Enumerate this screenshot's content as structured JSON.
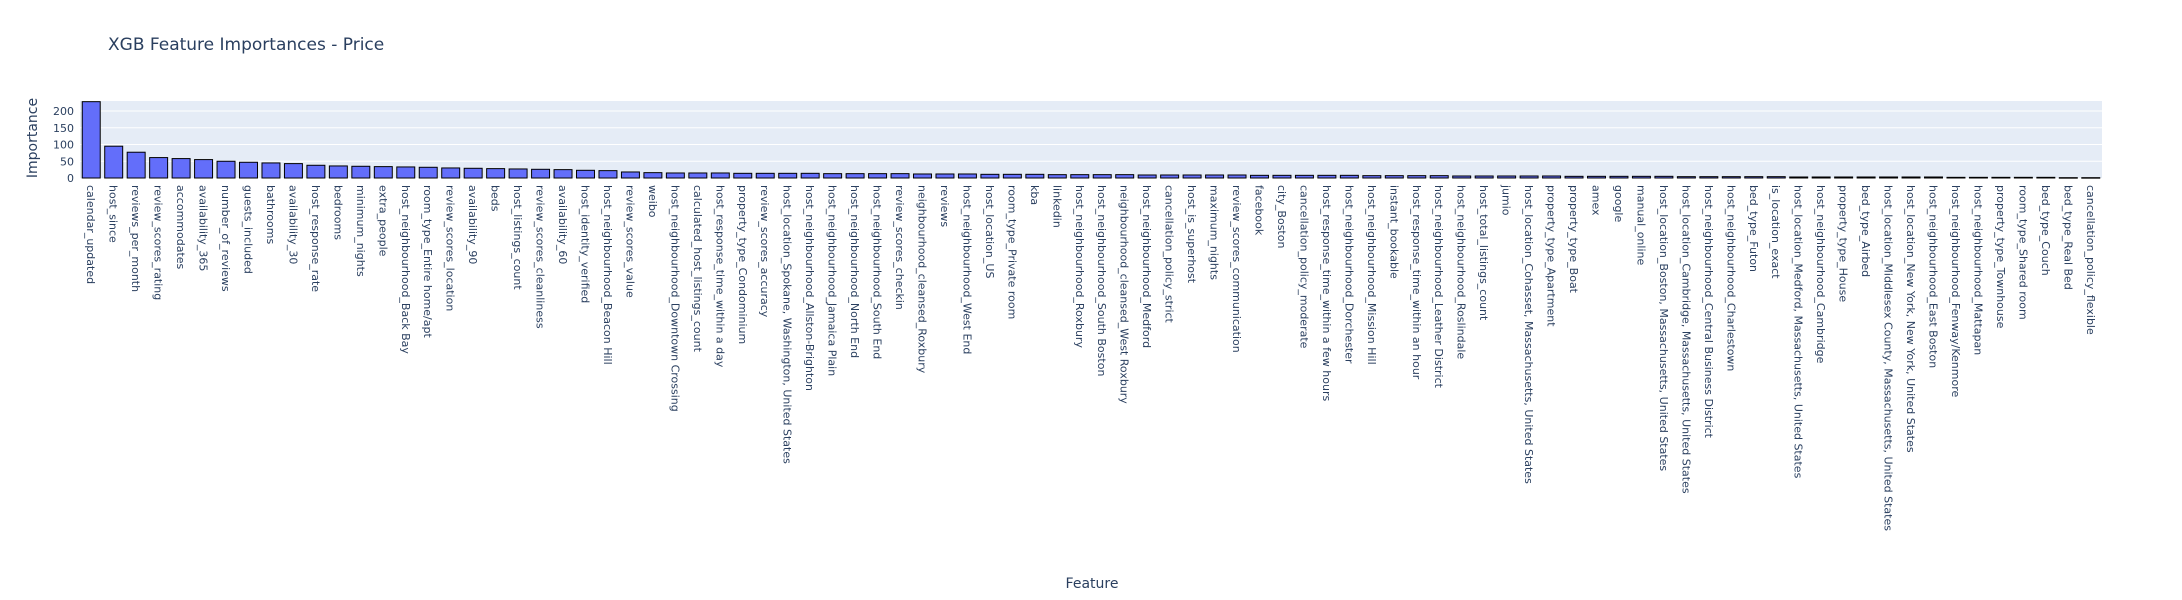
{
  "chart_data": {
    "type": "bar",
    "title": "XGB Feature Importances - Price",
    "xlabel": "Feature",
    "ylabel": "Importance",
    "ylim": [
      0,
      230
    ],
    "yticks": [
      0,
      50,
      100,
      150,
      200
    ],
    "grid": true,
    "colors": {
      "bar": "#636efa",
      "bar_outline": "#000000",
      "plot_bg": "#e5ecf6",
      "grid": "#ffffff",
      "text": "#2a3f5f"
    },
    "categories": [
      "calendar_updated",
      "host_since",
      "reviews_per_month",
      "review_scores_rating",
      "accommodates",
      "availability_365",
      "number_of_reviews",
      "guests_included",
      "bathrooms",
      "availability_30",
      "host_response_rate",
      "bedrooms",
      "minimum_nights",
      "extra_people",
      "host_neighbourhood_Back Bay",
      "room_type_Entire home/apt",
      "review_scores_location",
      "availability_90",
      "beds",
      "host_listings_count",
      "review_scores_cleanliness",
      "availability_60",
      "host_identity_verified",
      "host_neighbourhood_Beacon Hill",
      "review_scores_value",
      "weibo",
      "host_neighbourhood_Downtown Crossing",
      "calculated_host_listings_count",
      "host_response_time_within a day",
      "property_type_Condominium",
      "review_scores_accuracy",
      "host_location_Spokane, Washington, United States",
      "host_neighbourhood_Allston-Brighton",
      "host_neighbourhood_Jamaica Plain",
      "host_neighbourhood_North End",
      "host_neighbourhood_South End",
      "review_scores_checkin",
      "neighbourhood_cleansed_Roxbury",
      "reviews",
      "host_neighbourhood_West End",
      "host_location_US",
      "room_type_Private room",
      "kba",
      "linkedin",
      "host_neighbourhood_Roxbury",
      "host_neighbourhood_South Boston",
      "neighbourhood_cleansed_West Roxbury",
      "host_neighbourhood_Medford",
      "cancellation_policy_strict",
      "host_is_superhost",
      "maximum_nights",
      "review_scores_communication",
      "facebook",
      "city_Boston",
      "cancellation_policy_moderate",
      "host_response_time_within a few hours",
      "host_neighbourhood_Dorchester",
      "host_neighbourhood_Mission Hill",
      "instant_bookable",
      "host_response_time_within an hour",
      "host_neighbourhood_Leather District",
      "host_neighbourhood_Roslindale",
      "host_total_listings_count",
      "jumio",
      "host_location_Cohasset, Massachusetts, United States",
      "property_type_Apartment",
      "property_type_Boat",
      "amex",
      "google",
      "manual_online",
      "host_location_Boston, Massachusetts, United States",
      "host_location_Cambridge, Massachusetts, United States",
      "host_neighbourhood_Central Business District",
      "host_neighbourhood_Charlestown",
      "bed_type_Futon",
      "is_location_exact",
      "host_location_Medford, Massachusetts, United States",
      "host_neighbourhood_Cambridge",
      "property_type_House",
      "bed_type_Airbed",
      "host_location_Middlesex County, Massachusetts, United States",
      "host_location_New York, New York, United States",
      "host_neighbourhood_East Boston",
      "host_neighbourhood_Fenway/Kenmore",
      "host_neighbourhood_Mattapan",
      "property_type_Townhouse",
      "room_type_Shared room",
      "bed_type_Couch",
      "bed_type_Real Bed",
      "cancellation_policy_flexible"
    ],
    "values": [
      228,
      95,
      77,
      61,
      58,
      55,
      50,
      47,
      45,
      43,
      38,
      36,
      35,
      34,
      33,
      32,
      30,
      29,
      28,
      27,
      26,
      25,
      23,
      22,
      18,
      16,
      15,
      15,
      15,
      14,
      14,
      14,
      14,
      13,
      13,
      13,
      13,
      12,
      12,
      12,
      11,
      11,
      11,
      10,
      10,
      10,
      10,
      9,
      9,
      9,
      9,
      9,
      8,
      8,
      8,
      8,
      8,
      7,
      7,
      7,
      7,
      6,
      6,
      6,
      6,
      6,
      5,
      5,
      5,
      5,
      5,
      4,
      4,
      4,
      4,
      4,
      3,
      3,
      3,
      3,
      3,
      3,
      3,
      2,
      2,
      2,
      2,
      2,
      1,
      1
    ]
  }
}
